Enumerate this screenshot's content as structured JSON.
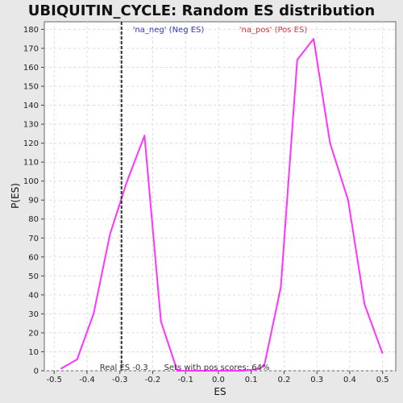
{
  "chart_data": {
    "type": "line",
    "title": "UBIQUITIN_CYCLE: Random ES distribution",
    "xlabel": "ES",
    "ylabel": "P(ES)",
    "xlim": [
      -0.53,
      0.54
    ],
    "ylim": [
      0,
      184
    ],
    "x_ticks": [
      -0.5,
      -0.4,
      -0.3,
      -0.2,
      -0.1,
      0.0,
      0.1,
      0.2,
      0.3,
      0.4,
      0.5
    ],
    "x_tick_labels": [
      "-0.5",
      "-0.4",
      "-0.3",
      "-0.2",
      "-0.1",
      "0.0",
      "0.1",
      "0.2",
      "0.3",
      "0.4",
      "0.5"
    ],
    "y_ticks": [
      0,
      10,
      20,
      30,
      40,
      50,
      60,
      70,
      80,
      90,
      100,
      110,
      120,
      130,
      140,
      150,
      160,
      170,
      180
    ],
    "y_tick_labels": [
      "0",
      "10",
      "20",
      "30",
      "40",
      "50",
      "60",
      "70",
      "80",
      "90",
      "100",
      "110",
      "120",
      "130",
      "140",
      "150",
      "160",
      "170",
      "180"
    ],
    "grid": true,
    "series": [
      {
        "color": "#ff33ff",
        "x": [
          -0.48,
          -0.43,
          -0.38,
          -0.33,
          -0.28,
          -0.225,
          -0.175,
          -0.125,
          -0.075,
          -0.025,
          0.025,
          0.075,
          0.125,
          0.14,
          0.19,
          0.24,
          0.29,
          0.34,
          0.395,
          0.445,
          0.5
        ],
        "y": [
          1,
          6,
          30,
          72,
          99,
          124,
          26,
          0,
          0,
          0,
          0,
          0,
          1,
          3,
          44,
          164,
          175,
          120,
          90,
          35,
          9
        ]
      }
    ],
    "legend": [
      {
        "label": "'na_neg' (Neg ES)",
        "color": "#3333cc"
      },
      {
        "label": "'na_pos' (Pos ES)",
        "color": "#dd3333"
      }
    ],
    "legend_placement": "top",
    "reference_line": {
      "x": -0.295,
      "label": "Real ES -0.3"
    },
    "annotation": "Sets with pos scores: 64%",
    "colors": {
      "background": "#e8e8e8",
      "plot_background": "#ffffff",
      "grid": "#dddddd",
      "line": "#ff33ff",
      "reference": "#333333"
    }
  }
}
